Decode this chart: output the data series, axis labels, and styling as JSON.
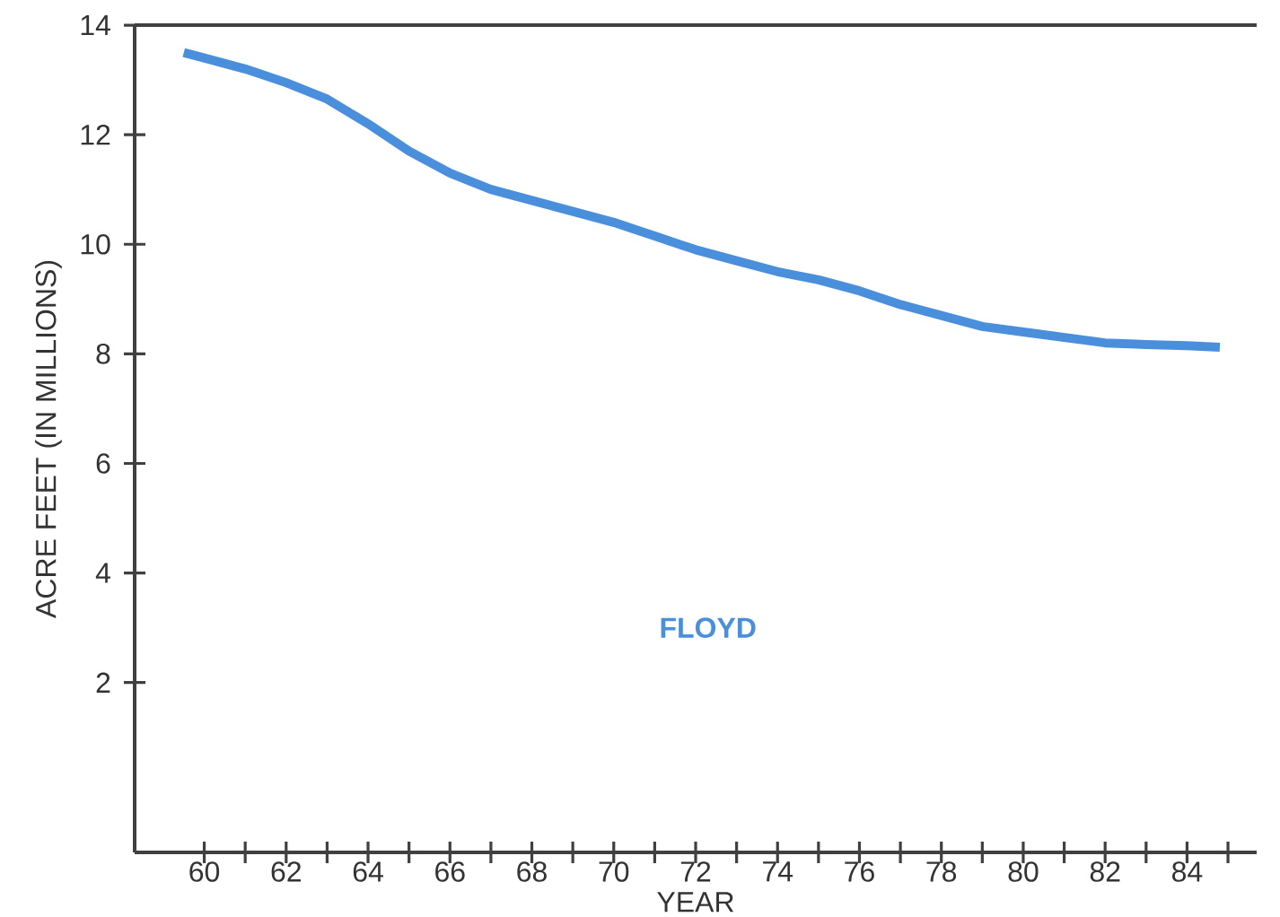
{
  "chart_data": {
    "type": "line",
    "xlabel": "YEAR",
    "ylabel": "ACRE FEET (IN MILLIONS)",
    "xlim": [
      58.3,
      85.7
    ],
    "ylim": [
      -1.1,
      14
    ],
    "xticks": [
      60,
      {
        "value": 61,
        "label": null
      },
      62,
      {
        "value": 63,
        "label": null
      },
      64,
      {
        "value": 65,
        "label": null
      },
      66,
      {
        "value": 67,
        "label": null
      },
      68,
      {
        "value": 69,
        "label": null
      },
      70,
      {
        "value": 71,
        "label": null
      },
      72,
      {
        "value": 73,
        "label": null
      },
      74,
      {
        "value": 75,
        "label": null
      },
      76,
      {
        "value": 77,
        "label": null
      },
      78,
      {
        "value": 79,
        "label": null
      },
      80,
      {
        "value": 81,
        "label": null
      },
      82,
      {
        "value": 83,
        "label": null
      },
      84,
      {
        "value": 85,
        "label": null
      }
    ],
    "yticks": [
      2,
      4,
      6,
      8,
      10,
      12,
      14
    ],
    "grid": false,
    "legend": false,
    "marker": "none",
    "line_style": "solid",
    "series": [
      {
        "name": "FLOYD",
        "color": "#4a8fdc",
        "x": [
          59.5,
          60,
          61,
          62,
          63,
          64,
          65,
          66,
          67,
          68,
          69,
          70,
          71,
          72,
          73,
          74,
          75,
          76,
          77,
          78,
          79,
          80,
          81,
          82,
          83,
          84,
          84.8
        ],
        "values": [
          13.5,
          13.4,
          13.2,
          12.95,
          12.65,
          12.2,
          11.7,
          11.3,
          11.0,
          10.8,
          10.6,
          10.4,
          10.15,
          9.9,
          9.7,
          9.5,
          9.35,
          9.15,
          8.9,
          8.7,
          8.5,
          8.4,
          8.3,
          8.2,
          8.17,
          8.15,
          8.12
        ]
      }
    ]
  }
}
